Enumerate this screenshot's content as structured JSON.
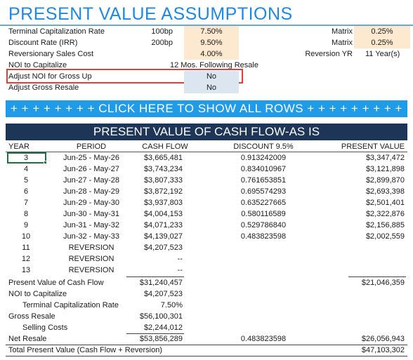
{
  "title": "PRESENT VALUE ASSUMPTIONS",
  "assumptions": {
    "terminal_cap_label": "Terminal Capitalization Rate",
    "terminal_cap_bp": "100bp",
    "terminal_cap_value": "7.50%",
    "discount_label": "Discount Rate (IRR)",
    "discount_bp": "200bp",
    "discount_value": "9.50%",
    "rev_sales_cost_label": "Reversionary Sales Cost",
    "rev_sales_cost_value": "4.00%",
    "noi_cap_label": "NOI to Capitalize",
    "noi_cap_value": "12 Mos. Following Resale",
    "adjust_noi_label": "Adjust NOI for Gross Up",
    "adjust_noi_value": "No",
    "adjust_gross_label": "Adjust Gross Resale",
    "adjust_gross_value": "No",
    "matrix1_label": "Matrix",
    "matrix1_value": "0.25%",
    "matrix2_label": "Matrix",
    "matrix2_value": "0.25%",
    "reversion_yr_label": "Reversion YR",
    "reversion_yr_value": "11 Year(s)"
  },
  "banner": "+ + + + + + + + CLICK HERE TO SHOW ALL ROWS + + + + + + + + +",
  "pv_header": "PRESENT VALUE OF CASH FLOW-AS IS",
  "columns": {
    "year": "YEAR",
    "period": "PERIOD",
    "cash_flow": "CASH FLOW",
    "discount": "DISCOUNT  9.5%",
    "present_value": "PRESENT VALUE"
  },
  "rows": [
    {
      "year": "3",
      "period": "Jun-25 - May-26",
      "cash_flow": "$3,665,481",
      "discount": "0.913242009",
      "pv": "$3,347,472"
    },
    {
      "year": "4",
      "period": "Jun-26 - May-27",
      "cash_flow": "$3,743,234",
      "discount": "0.834010967",
      "pv": "$3,121,898"
    },
    {
      "year": "5",
      "period": "Jun-27 - May-28",
      "cash_flow": "$3,807,333",
      "discount": "0.761653851",
      "pv": "$2,899,870"
    },
    {
      "year": "6",
      "period": "Jun-28 - May-29",
      "cash_flow": "$3,872,192",
      "discount": "0.695574293",
      "pv": "$2,693,398"
    },
    {
      "year": "7",
      "period": "Jun-29 - May-30",
      "cash_flow": "$3,937,803",
      "discount": "0.635227665",
      "pv": "$2,501,401"
    },
    {
      "year": "8",
      "period": "Jun-30 - May-31",
      "cash_flow": "$4,004,153",
      "discount": "0.580116589",
      "pv": "$2,322,876"
    },
    {
      "year": "9",
      "period": "Jun-31 - May-32",
      "cash_flow": "$4,071,233",
      "discount": "0.529786840",
      "pv": "$2,156,885"
    },
    {
      "year": "10",
      "period": "Jun-32 - May-33",
      "cash_flow": "$4,139,027",
      "discount": "0.483823598",
      "pv": "$2,002,559"
    },
    {
      "year": "11",
      "period": "REVERSION",
      "cash_flow": "$4,207,523",
      "discount": "",
      "pv": ""
    },
    {
      "year": "12",
      "period": "REVERSION",
      "cash_flow": "--",
      "discount": "",
      "pv": ""
    },
    {
      "year": "13",
      "period": "REVERSION",
      "cash_flow": "--",
      "discount": "",
      "pv": ""
    }
  ],
  "summary": {
    "pv_cash_flow_label": "Present Value of Cash Flow",
    "pv_cash_flow_value": "$31,240,457",
    "pv_cash_flow_pv": "$21,046,359",
    "noi_cap_label": "NOI to Capitalize",
    "noi_cap_value": "$4,207,523",
    "tcr_label": "Terminal Capitalization Rate",
    "tcr_value": "7.50%",
    "gross_resale_label": "Gross Resale",
    "gross_resale_value": "$56,100,301",
    "selling_costs_label": "Selling Costs",
    "selling_costs_value": "$2,244,012",
    "net_resale_label": "Net Resale",
    "net_resale_value": "$53,856,289",
    "net_resale_discount": "0.483823598",
    "net_resale_pv": "$26,056,943",
    "total_pv_label": "Total Present Value (Cash Flow + Reversion)",
    "total_pv_value": "$47,103,302"
  },
  "colors": {
    "title": "#1e88e5",
    "banner": "#1f9be8",
    "header": "#1d3557",
    "input_shade": "#fde9d0",
    "highlight": "#e0403b"
  }
}
